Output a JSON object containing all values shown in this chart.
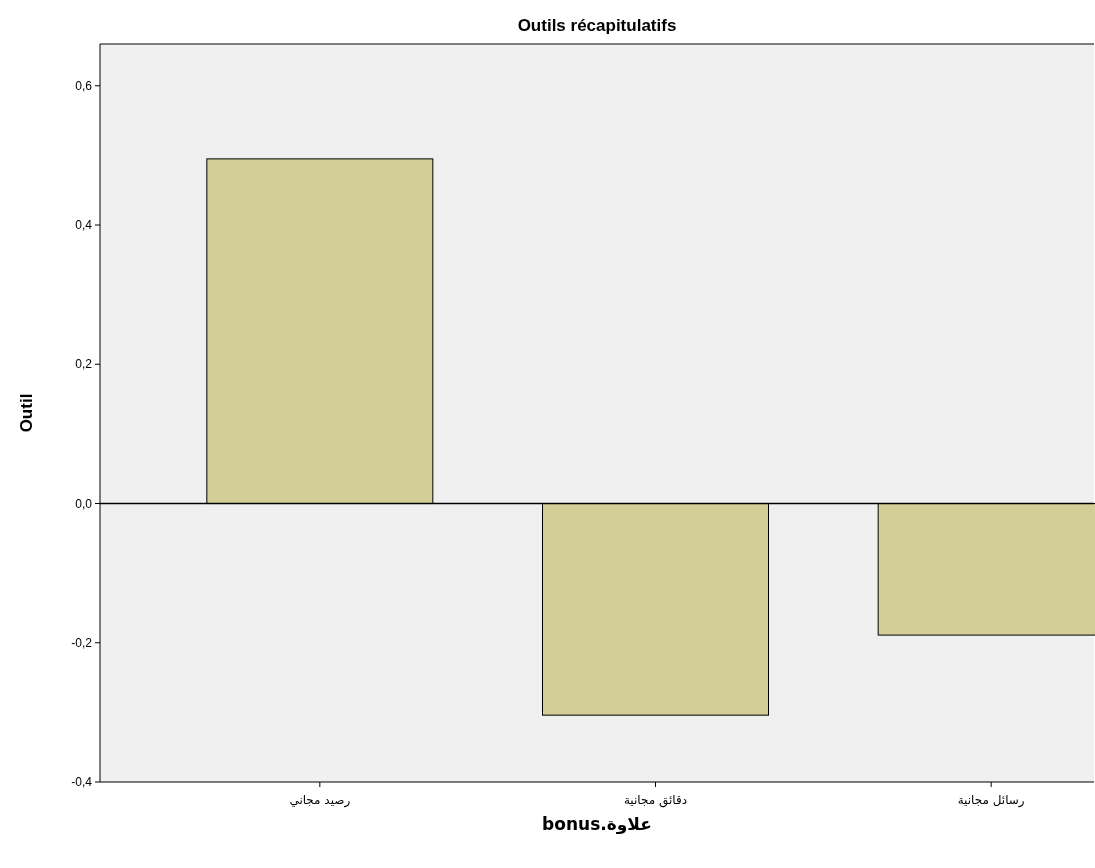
{
  "chart_data": {
    "type": "bar",
    "title": "Outils récapitulatifs",
    "xlabel": "علاوة.bonus",
    "ylabel": "Outil",
    "categories": [
      "رصيد مجاني",
      "دقائق مجانية",
      "رسائل مجانية"
    ],
    "values": [
      0.495,
      -0.304,
      -0.189
    ],
    "color": "#d3ce97",
    "ylim": [
      -0.4,
      0.66
    ],
    "yticks": [
      {
        "value": -0.4,
        "label": "-0,4"
      },
      {
        "value": -0.2,
        "label": "-0,2"
      },
      {
        "value": 0,
        "label": "0,0"
      },
      {
        "value": 0.2,
        "label": "0,2"
      },
      {
        "value": 0.4,
        "label": "0,4"
      },
      {
        "value": 0.6,
        "label": "0,6"
      }
    ],
    "ref_lines": [
      {
        "axis": "y",
        "value": 0,
        "color": "#000000"
      }
    ],
    "grid": false
  }
}
